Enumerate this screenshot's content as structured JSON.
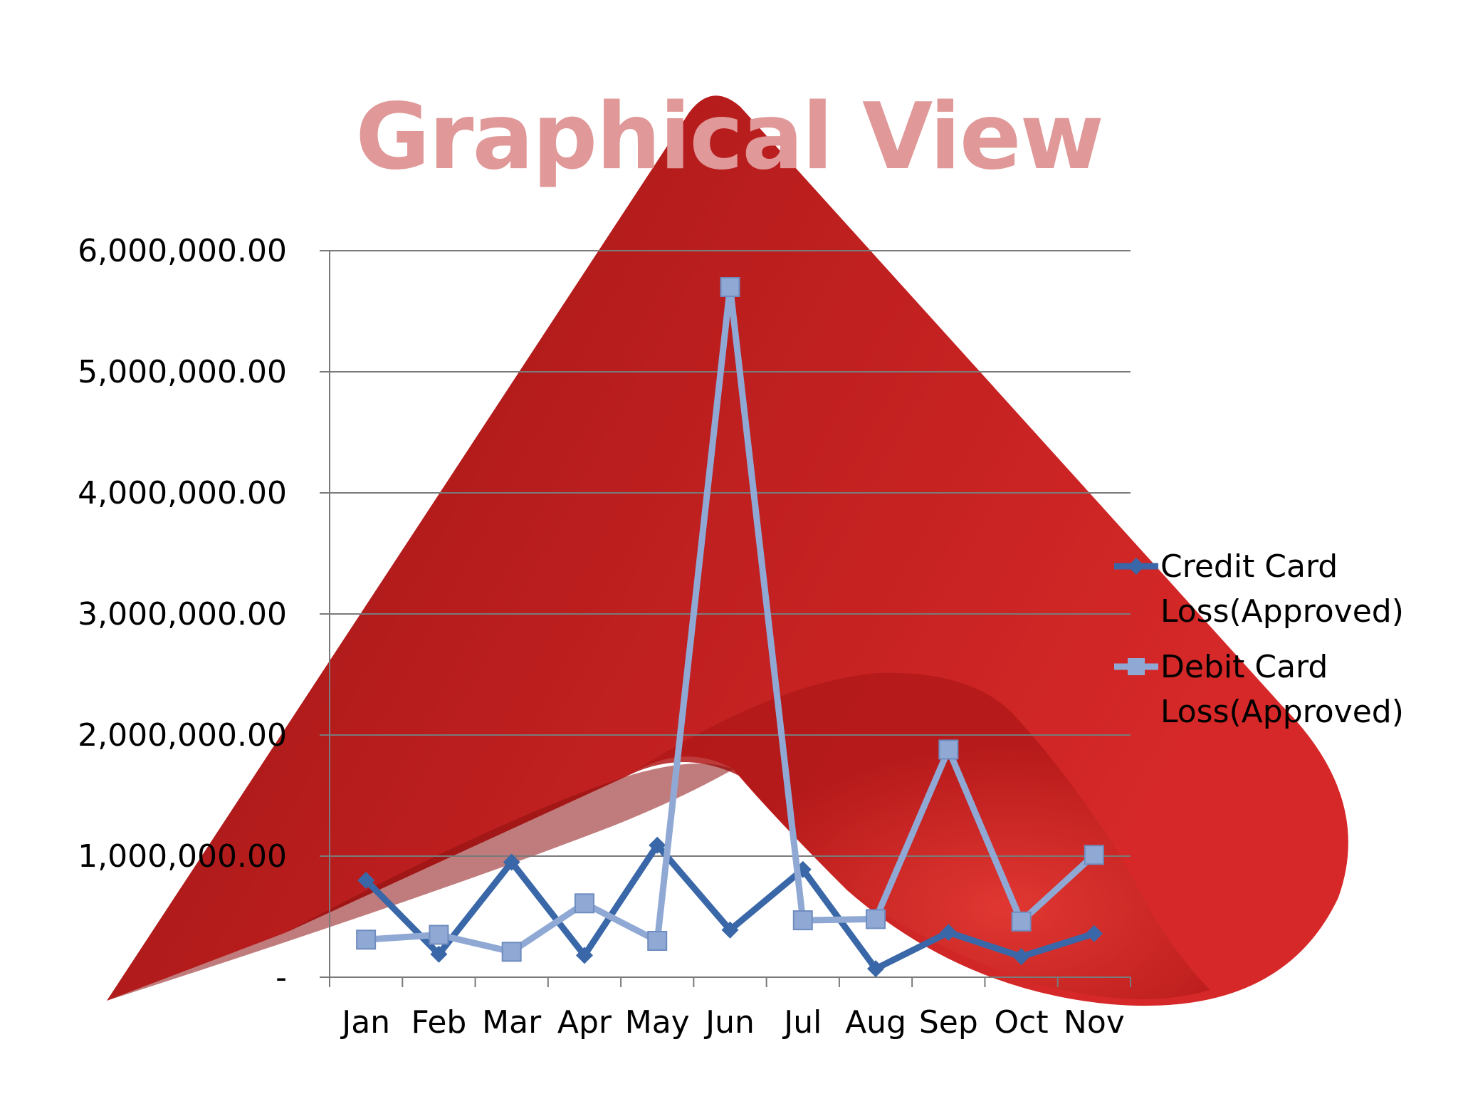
{
  "slide": {
    "title": "Graphical View"
  },
  "colors": {
    "title": "#e09898",
    "credit_series": "#3a67a8",
    "debit_series": "#8fa9d4",
    "background_shape": "#c81f1f",
    "gridline": "#7a7a7a"
  },
  "chart_data": {
    "type": "line",
    "title": "",
    "xlabel": "",
    "ylabel": "",
    "categories": [
      "Jan",
      "Feb",
      "Mar",
      "Apr",
      "May",
      "Jun",
      "Jul",
      "Aug",
      "Sep",
      "Oct",
      "Nov"
    ],
    "ylim": [
      0,
      6000000
    ],
    "yticks": [
      0,
      1000000,
      2000000,
      3000000,
      4000000,
      5000000,
      6000000
    ],
    "ytick_labels": [
      "-",
      "1,000,000.00",
      "2,000,000.00",
      "3,000,000.00",
      "4,000,000.00",
      "5,000,000.00",
      "6,000,000.00"
    ],
    "grid": true,
    "legend_position": "right",
    "series": [
      {
        "name": "Credit Card Loss(Approved)",
        "marker": "diamond",
        "values": [
          800000,
          190000,
          950000,
          180000,
          1090000,
          390000,
          890000,
          70000,
          370000,
          170000,
          360000
        ]
      },
      {
        "name": "Debit Card Loss(Approved)",
        "marker": "square",
        "values": [
          310000,
          350000,
          210000,
          610000,
          300000,
          5700000,
          470000,
          480000,
          1880000,
          460000,
          1010000
        ]
      }
    ],
    "legend_lines": [
      [
        "Credit Card",
        "Loss(Approved)"
      ],
      [
        "Debit Card",
        "Loss(Approved)"
      ]
    ]
  }
}
